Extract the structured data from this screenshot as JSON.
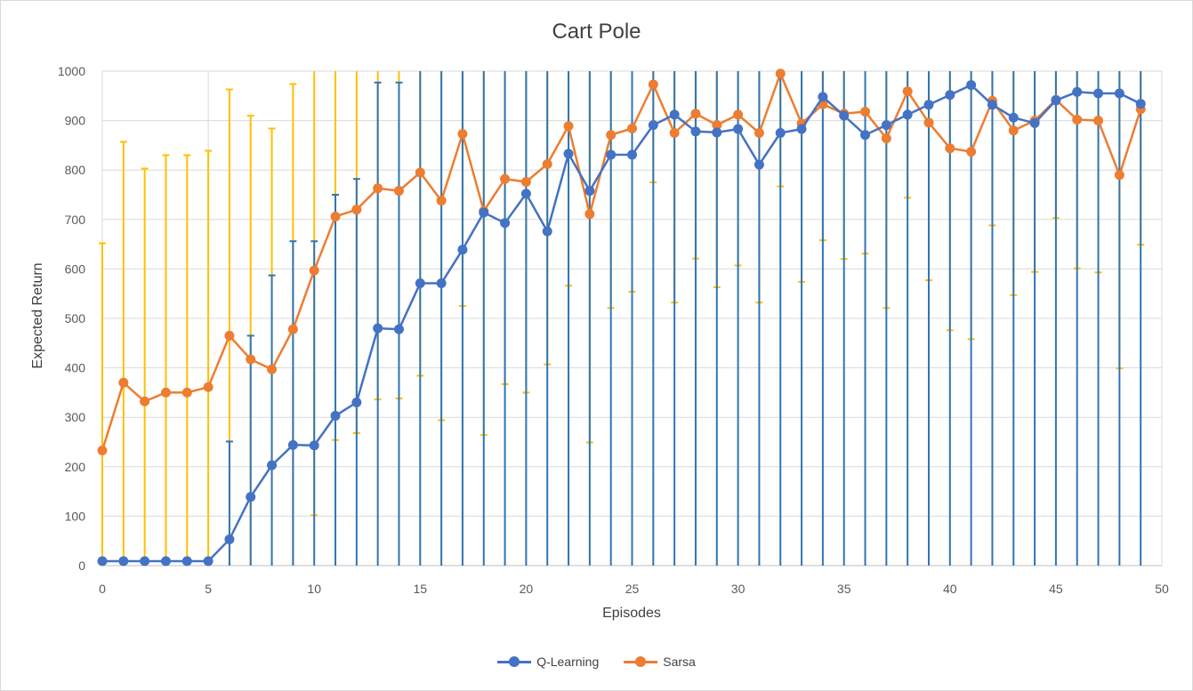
{
  "chart_data": {
    "type": "line",
    "title": "Cart Pole",
    "xlabel": "Episodes",
    "ylabel": "Expected Return",
    "xlim": [
      0,
      50
    ],
    "ylim": [
      0,
      1000
    ],
    "xticks": [
      "0",
      "5",
      "10",
      "15",
      "20",
      "25",
      "30",
      "35",
      "40",
      "45",
      "50"
    ],
    "yticks": [
      "0",
      "100",
      "200",
      "300",
      "400",
      "500",
      "600",
      "700",
      "800",
      "900",
      "1000"
    ],
    "grid": true,
    "legend_position": "bottom",
    "x": [
      0,
      1,
      2,
      3,
      4,
      5,
      6,
      7,
      8,
      9,
      10,
      11,
      12,
      13,
      14,
      15,
      16,
      17,
      18,
      19,
      20,
      21,
      22,
      23,
      24,
      25,
      26,
      27,
      28,
      29,
      30,
      31,
      32,
      33,
      34,
      35,
      36,
      37,
      38,
      39,
      40,
      41,
      42,
      43,
      44,
      45,
      46,
      47,
      48,
      49
    ],
    "series": [
      {
        "name": "Q-Learning",
        "color": "#4472c4",
        "values": [
          9,
          9,
          9,
          9,
          9,
          9,
          53,
          139,
          203,
          244,
          243,
          303,
          330,
          480,
          478,
          571,
          571,
          639,
          714,
          693,
          752,
          676,
          833,
          758,
          831,
          831,
          891,
          912,
          878,
          876,
          883,
          811,
          875,
          883,
          948,
          910,
          871,
          891,
          912,
          932,
          952,
          972,
          932,
          906,
          895,
          941,
          958,
          955,
          955,
          934
        ],
        "error_low": [
          9,
          9,
          9,
          9,
          9,
          9,
          53,
          139,
          203,
          244,
          243,
          303,
          330,
          480,
          478,
          571,
          571,
          639,
          714,
          693,
          752,
          676,
          833,
          758,
          831,
          831,
          891,
          912,
          878,
          876,
          883,
          811,
          875,
          883,
          948,
          910,
          871,
          891,
          912,
          932,
          952,
          972,
          932,
          906,
          895,
          941,
          958,
          955,
          955,
          934
        ],
        "error_high": [
          0,
          0,
          0,
          0,
          0,
          0,
          198,
          326,
          384,
          412,
          413,
          447,
          452,
          497,
          499,
          503,
          503,
          484,
          460,
          468,
          440,
          474,
          282,
          432,
          390,
          390,
          329,
          303,
          335,
          341,
          330,
          405,
          344,
          329,
          222,
          298,
          349,
          328,
          304,
          266,
          240,
          198,
          275,
          306,
          322,
          253,
          224,
          232,
          233,
          268
        ]
      },
      {
        "name": "Sarsa",
        "color": "#ed7d31",
        "values": [
          233,
          370,
          332,
          350,
          350,
          361,
          465,
          417,
          397,
          478,
          597,
          706,
          720,
          763,
          758,
          795,
          738,
          873,
          717,
          782,
          776,
          812,
          889,
          711,
          871,
          884,
          973,
          875,
          914,
          891,
          912,
          875,
          995,
          894,
          933,
          914,
          918,
          864,
          959,
          896,
          844,
          837,
          940,
          880,
          900,
          942,
          902,
          900,
          790,
          923
        ],
        "error_low": [
          233,
          370,
          332,
          350,
          350,
          361,
          465,
          417,
          397,
          478,
          495,
          452,
          452,
          427,
          420,
          411,
          444,
          348,
          453,
          415,
          426,
          405,
          323,
          462,
          350,
          330,
          198,
          343,
          293,
          328,
          305,
          343,
          228,
          320,
          275,
          294,
          287,
          343,
          215,
          319,
          368,
          379,
          252,
          333,
          306,
          239,
          301,
          307,
          391,
          274
        ],
        "error_high": [
          419,
          487,
          471,
          480,
          480,
          478,
          498,
          493,
          487,
          496,
          495,
          452,
          452,
          427,
          420,
          411,
          444,
          348,
          453,
          415,
          426,
          405,
          323,
          462,
          350,
          330,
          198,
          343,
          293,
          328,
          305,
          343,
          228,
          320,
          275,
          294,
          287,
          343,
          215,
          319,
          368,
          379,
          252,
          333,
          306,
          239,
          301,
          307,
          391,
          274
        ]
      }
    ]
  }
}
